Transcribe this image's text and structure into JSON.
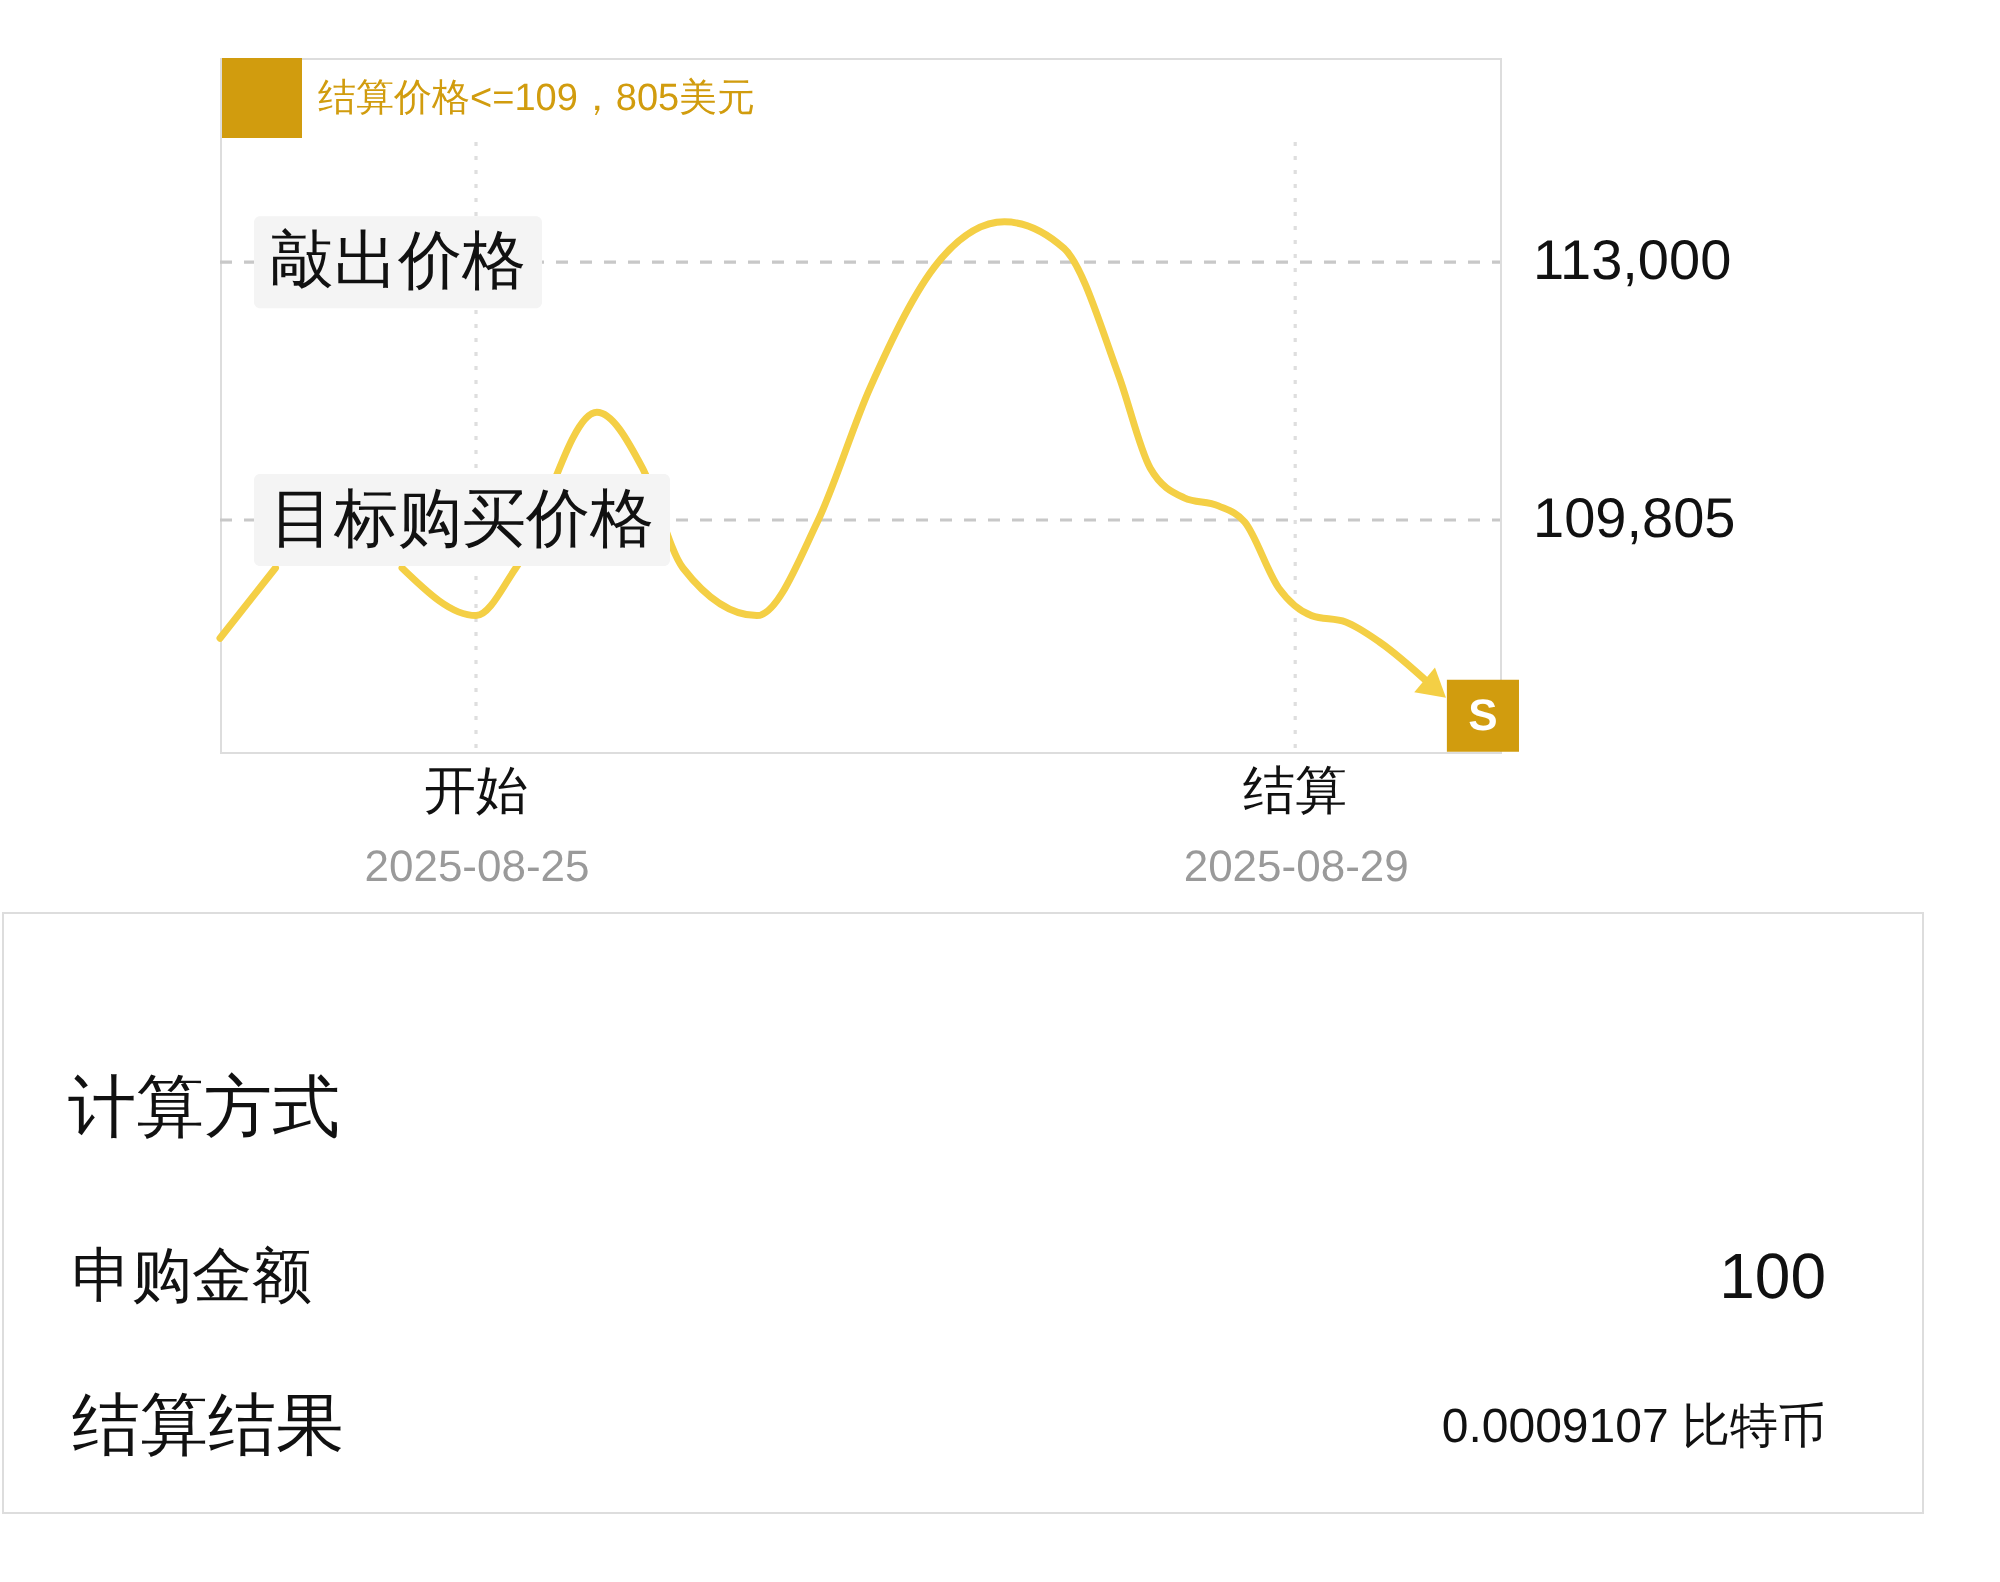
{
  "chart_data": [
    {
      "type": "line",
      "xlim": [
        "2025-08-23T18:00",
        "2025-08-30T00:00"
      ],
      "xticks": [
        "2025-08-25",
        "2025-08-29"
      ],
      "ylim": [
        106930,
        115530
      ],
      "yticks": [
        {
          "value": 109805,
          "label": "109,805"
        },
        {
          "value": 113000,
          "label": "113,000"
        }
      ],
      "legend": "top left",
      "series": [
        {
          "type": "line",
          "color": "#f4cf45",
          "x": [
            "2025-08-23T18:00",
            "2025-08-24T00:30",
            "2025-08-24T07:45",
            "2025-08-24T15:20",
            "2025-08-25T00:00",
            "2025-08-25T04:40",
            "2025-08-25T14:10",
            "2025-08-25T19:30",
            "2025-08-26T00:15",
            "2025-08-26T08:55",
            "2025-08-26T16:00",
            "2025-08-26T22:10",
            "2025-08-27T06:10",
            "2025-08-27T13:55",
            "2025-08-27T20:55",
            "2025-08-28T03:20",
            "2025-08-28T07:00",
            "2025-08-28T11:00",
            "2025-08-28T15:00",
            "2025-08-28T18:05",
            "2025-08-28T22:05",
            "2025-08-29T01:55",
            "2025-08-29T05:55",
            "2025-08-29T09:55",
            "2025-08-29T16:00"
          ],
          "values": [
            108340,
            109210,
            null,
            109210,
            108620,
            109210,
            111140,
            110450,
            109210,
            108620,
            109780,
            111440,
            113000,
            113500,
            113170,
            111590,
            110450,
            110080,
            109980,
            109780,
            108960,
            108620,
            108540,
            108290,
            107750
          ]
        },
        {
          "type": "scatter",
          "name": "结算价格<=109，805美元",
          "color": "#d19c0e",
          "marker": "square",
          "x": [
            "2025-08-29T22:00"
          ],
          "values": [
            107380
          ],
          "value_labels": [
            "S"
          ]
        }
      ],
      "ref_lines": [
        {
          "axis": "y",
          "value": 113000,
          "label": "敲出价格",
          "color": "#c8c8c8",
          "line_style": "dashed"
        },
        {
          "axis": "y",
          "value": 109805,
          "label": "目标购买价格",
          "color": "#c8c8c8",
          "line_style": "dashed"
        },
        {
          "axis": "x",
          "value": "2025-08-25",
          "label": "开始",
          "color": "#dedede",
          "line_style": "dotted"
        },
        {
          "axis": "x",
          "value": "2025-08-29",
          "label": "结算",
          "color": "#dedede",
          "line_style": "dotted"
        }
      ]
    },
    {
      "type": "other",
      "title": "计算方式",
      "annotations": [
        "申购金额",
        "100",
        "结算结果",
        "0.0009107 比特币"
      ]
    }
  ]
}
